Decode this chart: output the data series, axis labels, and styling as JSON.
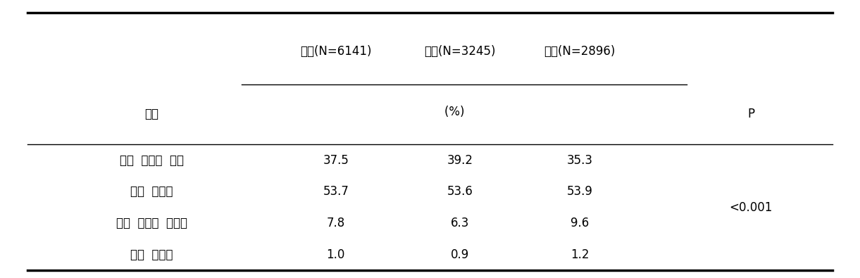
{
  "col_header_line1": [
    "전체(N=6141)",
    "남자(N=3245)",
    "여자(N=2896)"
  ],
  "col_header_line2": "(%)  ",
  "row_header": "항목",
  "p_label": "P",
  "p_value": "<0.001",
  "rows": [
    {
      "label": "거의  그렇지  않다",
      "values": [
        "37.5",
        "39.2",
        "35.3"
      ]
    },
    {
      "label": "가끔  그렇다",
      "values": [
        "53.7",
        "53.6",
        "53.9"
      ]
    },
    {
      "label": "거의  대부분  그렇다",
      "values": [
        "7.8",
        "6.3",
        "9.6"
      ]
    },
    {
      "label": "항상  그렇다",
      "values": [
        "1.0",
        "0.9",
        "1.2"
      ]
    }
  ],
  "font_size": 12,
  "bg_color": "#ffffff",
  "text_color": "#000000",
  "line_color": "#000000"
}
